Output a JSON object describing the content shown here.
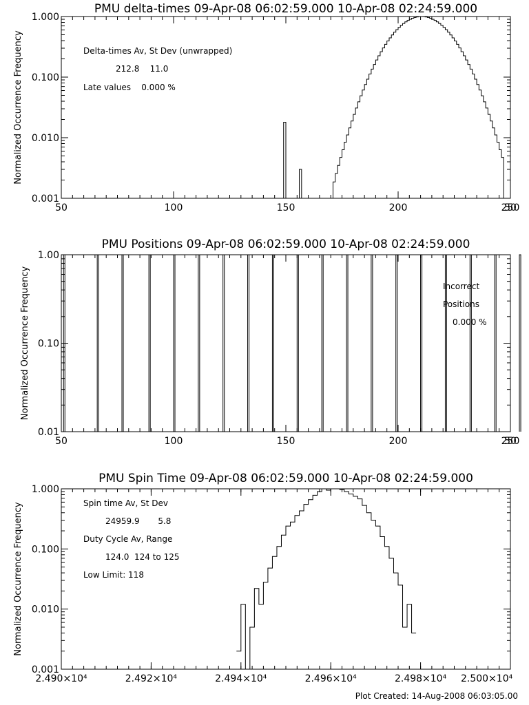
{
  "footer": "Plot Created: 14-Aug-2008 06:03:05.00",
  "chart_data": [
    {
      "type": "histogram",
      "title": "PMU delta-times 09-Apr-08 06:02:59.000 10-Apr-08 02:24:59.000",
      "ylabel": "Normalized Occurrence Frequency",
      "xlim": [
        50,
        250
      ],
      "ylim": [
        0.001,
        1.0
      ],
      "yscale": "log",
      "xticks": [
        {
          "v": 50,
          "t": "50"
        },
        {
          "v": 100,
          "t": "100"
        },
        {
          "v": 150,
          "t": "150"
        },
        {
          "v": 200,
          "t": "200"
        },
        {
          "v": 250,
          "t": "250"
        }
      ],
      "xtick_right": "50",
      "yticks": [
        {
          "v": 1,
          "t": "1.000"
        },
        {
          "v": 0.1,
          "t": "0.100"
        },
        {
          "v": 0.01,
          "t": "0.010"
        },
        {
          "v": 0.001,
          "t": "0.001"
        }
      ],
      "spikes": [
        {
          "x": 149,
          "y": 0.018
        },
        {
          "x": 156,
          "y": 0.003
        }
      ],
      "gaussian": {
        "center": 210.5,
        "sigma": 11.0,
        "peak": 1.0,
        "xmin": 171,
        "xmax": 246,
        "step": 1
      },
      "annotations": [
        "Delta-times Av, St Dev (unwrapped)",
        "212.8    11.0",
        "Late values    0.000 %"
      ]
    },
    {
      "type": "histogram",
      "title": "PMU Positions 09-Apr-08 06:02:59.000 10-Apr-08 02:24:59.000",
      "ylabel": "Normalized Occurrence Frequency",
      "xlim": [
        50,
        250
      ],
      "ylim": [
        0.01,
        1.0
      ],
      "yscale": "log",
      "xticks": [
        {
          "v": 50,
          "t": "50"
        },
        {
          "v": 100,
          "t": "100"
        },
        {
          "v": 150,
          "t": "150"
        },
        {
          "v": 200,
          "t": "200"
        },
        {
          "v": 250,
          "t": "250"
        }
      ],
      "xtick_right": "50",
      "yticks": [
        {
          "v": 1,
          "t": "1.00"
        },
        {
          "v": 0.1,
          "t": "0.10"
        },
        {
          "v": 0.01,
          "t": "0.01"
        }
      ],
      "bars_x": [
        51,
        66,
        77,
        89,
        100,
        111,
        122,
        133,
        144,
        155,
        166,
        177,
        188,
        199,
        210,
        221,
        232,
        243,
        254
      ],
      "bar_value": 1.0,
      "annotations": [
        "Incorrect",
        "Positions",
        "0.000 %"
      ]
    },
    {
      "type": "histogram",
      "title": "PMU Spin Time 09-Apr-08 06:02:59.000 10-Apr-08 02:24:59.000",
      "ylabel": "Normalized Occurrence Frequency",
      "xlim": [
        24900,
        25000
      ],
      "ylim": [
        0.001,
        1.0
      ],
      "yscale": "log",
      "xticks": [
        {
          "v": 24900,
          "t": "2.490×10⁴"
        },
        {
          "v": 24920,
          "t": "2.492×10⁴"
        },
        {
          "v": 24940,
          "t": "2.494×10⁴"
        },
        {
          "v": 24960,
          "t": "2.496×10⁴"
        },
        {
          "v": 24980,
          "t": "2.498×10⁴"
        },
        {
          "v": 25000,
          "t": "2.500×10⁴"
        }
      ],
      "yticks": [
        {
          "v": 1,
          "t": "1.000"
        },
        {
          "v": 0.1,
          "t": "0.100"
        },
        {
          "v": 0.01,
          "t": "0.010"
        },
        {
          "v": 0.001,
          "t": "0.001"
        }
      ],
      "steps_x": [
        24939,
        24940,
        24941,
        24942,
        24943,
        24944,
        24945,
        24946,
        24947,
        24948,
        24949,
        24950,
        24951,
        24952,
        24953,
        24954,
        24955,
        24956,
        24957,
        24958,
        24959,
        24960,
        24961,
        24962,
        24963,
        24964,
        24965,
        24966,
        24967,
        24968,
        24969,
        24970,
        24971,
        24972,
        24973,
        24974,
        24975,
        24976,
        24977,
        24978
      ],
      "steps_y": [
        0.002,
        0.012,
        0.001,
        0.005,
        0.022,
        0.012,
        0.028,
        0.048,
        0.075,
        0.11,
        0.17,
        0.24,
        0.28,
        0.36,
        0.43,
        0.55,
        0.66,
        0.78,
        0.9,
        1.0,
        0.95,
        1.0,
        1.0,
        0.97,
        0.9,
        0.82,
        0.75,
        0.68,
        0.53,
        0.4,
        0.3,
        0.24,
        0.16,
        0.11,
        0.07,
        0.04,
        0.025,
        0.005,
        0.012,
        0.004
      ],
      "annotations": [
        "Spin time Av, St Dev",
        "24959.9       5.8",
        "Duty Cycle Av, Range",
        "124.0  124 to 125",
        "Low Limit: 118"
      ]
    }
  ]
}
